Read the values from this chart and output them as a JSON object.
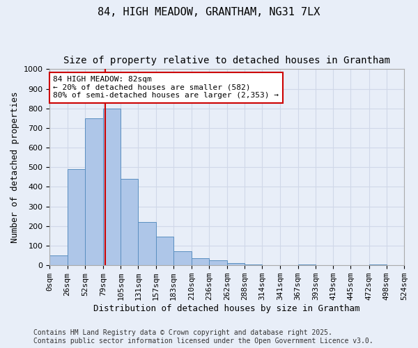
{
  "title_line1": "84, HIGH MEADOW, GRANTHAM, NG31 7LX",
  "title_line2": "Size of property relative to detached houses in Grantham",
  "xlabel": "Distribution of detached houses by size in Grantham",
  "ylabel": "Number of detached properties",
  "bins": [
    0,
    26,
    52,
    79,
    105,
    131,
    157,
    183,
    210,
    236,
    262,
    288,
    314,
    341,
    367,
    393,
    419,
    445,
    472,
    498,
    524
  ],
  "bin_labels": [
    "0sqm",
    "26sqm",
    "52sqm",
    "79sqm",
    "105sqm",
    "131sqm",
    "157sqm",
    "183sqm",
    "210sqm",
    "236sqm",
    "262sqm",
    "288sqm",
    "314sqm",
    "341sqm",
    "367sqm",
    "393sqm",
    "419sqm",
    "445sqm",
    "472sqm",
    "498sqm",
    "524sqm"
  ],
  "counts": [
    50,
    490,
    750,
    800,
    440,
    220,
    145,
    70,
    35,
    25,
    10,
    5,
    0,
    0,
    5,
    0,
    0,
    0,
    5,
    0
  ],
  "bar_color": "#aec6e8",
  "bar_edge_color": "#5a8fc0",
  "property_size": 82,
  "vline_color": "#cc0000",
  "annotation_text": "84 HIGH MEADOW: 82sqm\n← 20% of detached houses are smaller (582)\n80% of semi-detached houses are larger (2,353) →",
  "annotation_box_color": "#ffffff",
  "annotation_box_edge": "#cc0000",
  "ylim": [
    0,
    1000
  ],
  "yticks": [
    0,
    100,
    200,
    300,
    400,
    500,
    600,
    700,
    800,
    900,
    1000
  ],
  "grid_color": "#d0d8e8",
  "background_color": "#e8eef8",
  "footer_text": "Contains HM Land Registry data © Crown copyright and database right 2025.\nContains public sector information licensed under the Open Government Licence v3.0.",
  "title_fontsize": 11,
  "subtitle_fontsize": 10,
  "axis_label_fontsize": 9,
  "tick_fontsize": 8,
  "annotation_fontsize": 8,
  "footer_fontsize": 7
}
